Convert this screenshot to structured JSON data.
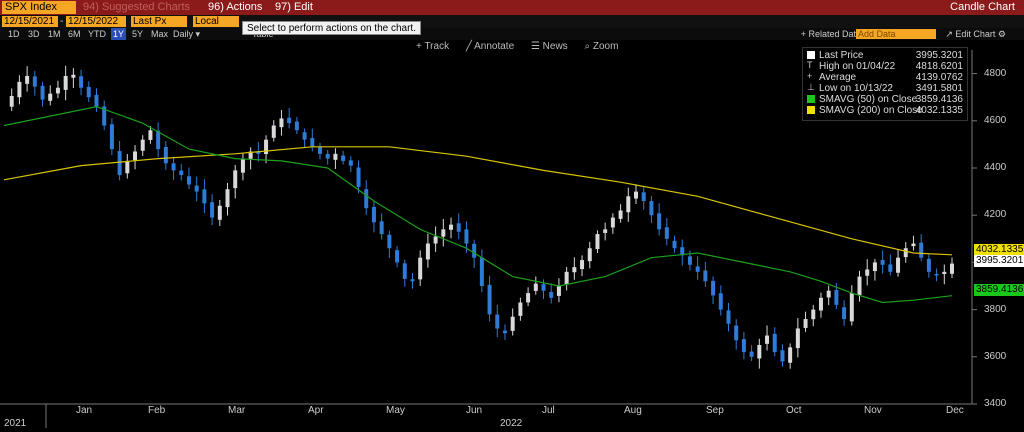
{
  "toolbar": {
    "ticker": "SPX Index",
    "suggested": "94) Suggested Charts",
    "actions": "96) Actions ▾",
    "edit": "97) Edit ▾",
    "chart_title": "Candle Chart"
  },
  "params": {
    "start_date": "12/15/2021",
    "end_date": "12/15/2022",
    "field": "Last Px",
    "currency": "Local CCY",
    "tooltip": "Select to perform actions on the chart."
  },
  "ranges": {
    "items": [
      "1D",
      "3D",
      "1M",
      "6M",
      "YTD",
      "1Y",
      "5Y",
      "Max"
    ],
    "selected": "1Y",
    "frequency": "Daily ▾",
    "table": "Table"
  },
  "right_controls": {
    "related": "+ Related Dat",
    "add_data": "Add Data",
    "edit_chart": "↗ Edit Chart ⚙"
  },
  "tools": [
    "+ Track",
    "╱ Annotate",
    "☰ News",
    "⌕ Zoom"
  ],
  "legend": [
    {
      "label": "Last Price",
      "value": "3995.3201",
      "color": "#ffffff"
    },
    {
      "label": "High on 01/04/22",
      "value": "4818.6201",
      "color": ""
    },
    {
      "label": "Average",
      "value": "4139.0762",
      "color": ""
    },
    {
      "label": "Low on 10/13/22",
      "value": "3491.5801",
      "color": ""
    },
    {
      "label": "SMAVG (50)  on Close",
      "value": "3859.4136",
      "color": "#19c819"
    },
    {
      "label": "SMAVG (200)  on Close",
      "value": "4032.1335",
      "color": "#f0e000"
    }
  ],
  "chart_data": {
    "type": "candlestick",
    "ylim": [
      3400,
      4900
    ],
    "yticks": [
      "4800",
      "4600",
      "4400",
      "4200",
      "4000",
      "3800",
      "3600",
      "3400"
    ],
    "months": [
      "Jan",
      "Feb",
      "Mar",
      "Apr",
      "May",
      "Jun",
      "Jul",
      "Aug",
      "Sep",
      "Oct",
      "Nov",
      "Dec"
    ],
    "years": [
      "2021",
      "2022"
    ],
    "last_price_label": "3995.3201",
    "sma200_label": "4032.1335",
    "sma50_label": "3859.4136",
    "close_path": [
      [
        0,
        4660
      ],
      [
        1,
        4705
      ],
      [
        2,
        4765
      ],
      [
        3,
        4790
      ],
      [
        4,
        4745
      ],
      [
        5,
        4690
      ],
      [
        6,
        4715
      ],
      [
        7,
        4740
      ],
      [
        8,
        4790
      ],
      [
        9,
        4795
      ],
      [
        10,
        4740
      ],
      [
        11,
        4700
      ],
      [
        12,
        4660
      ],
      [
        13,
        4580
      ],
      [
        14,
        4480
      ],
      [
        15,
        4370
      ],
      [
        16,
        4430
      ],
      [
        17,
        4470
      ],
      [
        18,
        4520
      ],
      [
        19,
        4560
      ],
      [
        20,
        4480
      ],
      [
        21,
        4420
      ],
      [
        22,
        4390
      ],
      [
        23,
        4370
      ],
      [
        24,
        4330
      ],
      [
        25,
        4300
      ],
      [
        26,
        4250
      ],
      [
        27,
        4190
      ],
      [
        28,
        4240
      ],
      [
        29,
        4310
      ],
      [
        30,
        4390
      ],
      [
        31,
        4440
      ],
      [
        32,
        4470
      ],
      [
        33,
        4460
      ],
      [
        34,
        4520
      ],
      [
        35,
        4580
      ],
      [
        36,
        4610
      ],
      [
        37,
        4590
      ],
      [
        38,
        4560
      ],
      [
        39,
        4520
      ],
      [
        40,
        4490
      ],
      [
        41,
        4460
      ],
      [
        42,
        4440
      ],
      [
        43,
        4460
      ],
      [
        44,
        4430
      ],
      [
        45,
        4410
      ],
      [
        46,
        4320
      ],
      [
        47,
        4230
      ],
      [
        48,
        4170
      ],
      [
        49,
        4120
      ],
      [
        50,
        4060
      ],
      [
        51,
        4000
      ],
      [
        52,
        3930
      ],
      [
        53,
        3920
      ],
      [
        54,
        4020
      ],
      [
        55,
        4080
      ],
      [
        56,
        4110
      ],
      [
        57,
        4140
      ],
      [
        58,
        4160
      ],
      [
        59,
        4130
      ],
      [
        60,
        4080
      ],
      [
        61,
        4020
      ],
      [
        62,
        3900
      ],
      [
        63,
        3780
      ],
      [
        64,
        3720
      ],
      [
        65,
        3700
      ],
      [
        66,
        3770
      ],
      [
        67,
        3830
      ],
      [
        68,
        3870
      ],
      [
        69,
        3910
      ],
      [
        70,
        3880
      ],
      [
        71,
        3850
      ],
      [
        72,
        3900
      ],
      [
        73,
        3960
      ],
      [
        74,
        3980
      ],
      [
        75,
        4010
      ],
      [
        76,
        4060
      ],
      [
        77,
        4120
      ],
      [
        78,
        4140
      ],
      [
        79,
        4190
      ],
      [
        80,
        4220
      ],
      [
        81,
        4280
      ],
      [
        82,
        4300
      ],
      [
        83,
        4260
      ],
      [
        84,
        4200
      ],
      [
        85,
        4140
      ],
      [
        86,
        4100
      ],
      [
        87,
        4060
      ],
      [
        88,
        4030
      ],
      [
        89,
        3990
      ],
      [
        90,
        3960
      ],
      [
        91,
        3920
      ],
      [
        92,
        3860
      ],
      [
        93,
        3800
      ],
      [
        94,
        3740
      ],
      [
        95,
        3670
      ],
      [
        96,
        3620
      ],
      [
        97,
        3600
      ],
      [
        98,
        3650
      ],
      [
        99,
        3690
      ],
      [
        100,
        3620
      ],
      [
        101,
        3580
      ],
      [
        102,
        3640
      ],
      [
        103,
        3720
      ],
      [
        104,
        3760
      ],
      [
        105,
        3800
      ],
      [
        106,
        3850
      ],
      [
        107,
        3880
      ],
      [
        108,
        3820
      ],
      [
        109,
        3760
      ],
      [
        110,
        3870
      ],
      [
        111,
        3940
      ],
      [
        112,
        3970
      ],
      [
        113,
        4000
      ],
      [
        114,
        3990
      ],
      [
        115,
        3960
      ],
      [
        116,
        4020
      ],
      [
        117,
        4060
      ],
      [
        118,
        4080
      ],
      [
        119,
        4020
      ],
      [
        120,
        3960
      ],
      [
        121,
        3950
      ],
      [
        122,
        3960
      ],
      [
        123,
        3995
      ]
    ],
    "sma200_path": [
      [
        0,
        4350
      ],
      [
        10,
        4410
      ],
      [
        20,
        4440
      ],
      [
        30,
        4460
      ],
      [
        40,
        4490
      ],
      [
        50,
        4490
      ],
      [
        60,
        4450
      ],
      [
        70,
        4390
      ],
      [
        80,
        4340
      ],
      [
        90,
        4280
      ],
      [
        100,
        4190
      ],
      [
        110,
        4100
      ],
      [
        118,
        4040
      ],
      [
        123,
        4032
      ]
    ],
    "sma50_path": [
      [
        0,
        4580
      ],
      [
        6,
        4620
      ],
      [
        12,
        4660
      ],
      [
        18,
        4590
      ],
      [
        24,
        4480
      ],
      [
        30,
        4440
      ],
      [
        36,
        4430
      ],
      [
        42,
        4400
      ],
      [
        48,
        4260
      ],
      [
        54,
        4140
      ],
      [
        60,
        4060
      ],
      [
        66,
        3940
      ],
      [
        72,
        3900
      ],
      [
        78,
        3940
      ],
      [
        84,
        4020
      ],
      [
        90,
        4040
      ],
      [
        96,
        4000
      ],
      [
        102,
        3960
      ],
      [
        106,
        3920
      ],
      [
        110,
        3870
      ],
      [
        114,
        3830
      ],
      [
        118,
        3840
      ],
      [
        123,
        3859
      ]
    ]
  }
}
